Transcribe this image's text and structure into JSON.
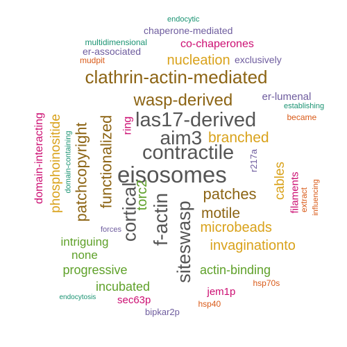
{
  "words": [
    {
      "text": "eisosomes",
      "color": "#555555"
    },
    {
      "text": "contractile",
      "color": "#555555"
    },
    {
      "text": "las17-derived",
      "color": "#555555"
    },
    {
      "text": "aim3",
      "color": "#555555"
    },
    {
      "text": "cortical",
      "color": "#555555"
    },
    {
      "text": "f-actin",
      "color": "#555555"
    },
    {
      "text": "siteswasp",
      "color": "#555555"
    },
    {
      "text": "clathrin-actin-mediated",
      "color": "#8c6414"
    },
    {
      "text": "wasp-derived",
      "color": "#8c6414"
    },
    {
      "text": "patchcopyright",
      "color": "#8c6414"
    },
    {
      "text": "functionalized",
      "color": "#8c6414"
    },
    {
      "text": "patches",
      "color": "#8c6414"
    },
    {
      "text": "motile",
      "color": "#8c6414"
    },
    {
      "text": "phosphoinositide",
      "color": "#d9a21b"
    },
    {
      "text": "nucleation",
      "color": "#d9a21b"
    },
    {
      "text": "branched",
      "color": "#d9a21b"
    },
    {
      "text": "cables",
      "color": "#d9a21b"
    },
    {
      "text": "microbeads",
      "color": "#d9a21b"
    },
    {
      "text": "invaginationto",
      "color": "#d9a21b"
    },
    {
      "text": "torc2",
      "color": "#5fa12a"
    },
    {
      "text": "intriguing",
      "color": "#5fa12a"
    },
    {
      "text": "none",
      "color": "#5fa12a"
    },
    {
      "text": "progressive",
      "color": "#5fa12a"
    },
    {
      "text": "actin-binding",
      "color": "#5fa12a"
    },
    {
      "text": "incubated",
      "color": "#5fa12a"
    },
    {
      "text": "co-chaperones",
      "color": "#cc0e72"
    },
    {
      "text": "domain-interacting",
      "color": "#cc0e72"
    },
    {
      "text": "ring",
      "color": "#cc0e72"
    },
    {
      "text": "filaments",
      "color": "#cc0e72"
    },
    {
      "text": "jem1p",
      "color": "#cc0e72"
    },
    {
      "text": "sec63p",
      "color": "#cc0e72"
    },
    {
      "text": "chaperone-mediated",
      "color": "#6e5c9e"
    },
    {
      "text": "er-associated",
      "color": "#6e5c9e"
    },
    {
      "text": "exclusively",
      "color": "#6e5c9e"
    },
    {
      "text": "er-lumenal",
      "color": "#6e5c9e"
    },
    {
      "text": "r217a",
      "color": "#6e5c9e"
    },
    {
      "text": "bipkar2p",
      "color": "#6e5c9e"
    },
    {
      "text": "forces",
      "color": "#6e5c9e"
    },
    {
      "text": "endocytic",
      "color": "#1a9372"
    },
    {
      "text": "multidimensional",
      "color": "#1a9372"
    },
    {
      "text": "establishing",
      "color": "#1a9372"
    },
    {
      "text": "domain-containing",
      "color": "#1a9372"
    },
    {
      "text": "endocytosis",
      "color": "#1a9372"
    },
    {
      "text": "mudpit",
      "color": "#d95a18"
    },
    {
      "text": "became",
      "color": "#d95a18"
    },
    {
      "text": "extract",
      "color": "#d95a18"
    },
    {
      "text": "influencing",
      "color": "#d95a18"
    },
    {
      "text": "hsp70s",
      "color": "#d95a18"
    },
    {
      "text": "hsp40",
      "color": "#d95a18"
    }
  ]
}
